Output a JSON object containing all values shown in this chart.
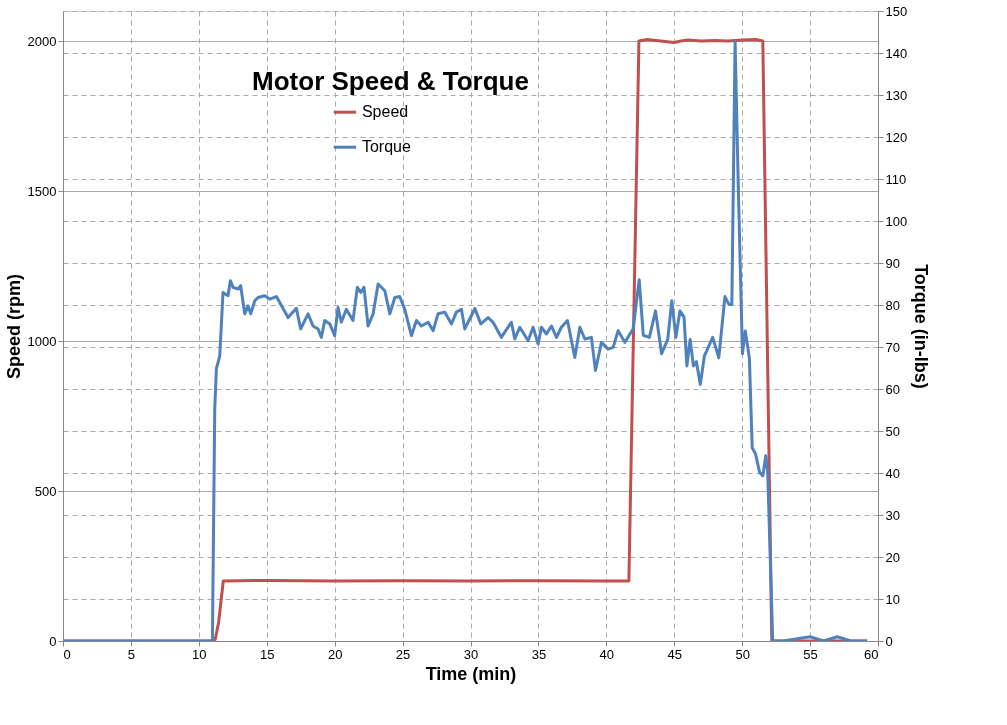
{
  "chart_data": {
    "type": "line",
    "title": "Motor Speed & Torque",
    "xlabel": "Time (min)",
    "ylabel": "Speed (rpm)",
    "y2label": "Torque (in-lbs)",
    "xlim": [
      0,
      60
    ],
    "xticks": [
      0,
      5,
      10,
      15,
      20,
      25,
      30,
      35,
      40,
      45,
      50,
      55,
      60
    ],
    "ylim": [
      0,
      2100
    ],
    "yticks": [
      0,
      500,
      1000,
      1500,
      2000
    ],
    "y2lim": [
      0,
      150
    ],
    "y2ticks": [
      0,
      10,
      20,
      30,
      40,
      50,
      60,
      70,
      80,
      90,
      100,
      110,
      120,
      130,
      140,
      150
    ],
    "grid": true,
    "legend": "top",
    "line_style": "solid",
    "marker": "none",
    "series": [
      {
        "name": "Speed",
        "color": "#c0504d",
        "axis": "y",
        "x": [
          0,
          11.1,
          11.2,
          11.45,
          11.8,
          15,
          20,
          25,
          30,
          35,
          40,
          41.66,
          42.4,
          43,
          44,
          45,
          45.5,
          46,
          47,
          48,
          49,
          50,
          51,
          51.52,
          52.18,
          55,
          59.2
        ],
        "values": [
          0,
          0,
          5,
          60,
          200,
          202,
          200,
          201,
          200,
          201,
          200,
          200,
          2000,
          2005,
          2000,
          1995,
          2000,
          2003,
          2000,
          2002,
          2000,
          2003,
          2005,
          2000,
          0,
          0,
          0
        ]
      },
      {
        "name": "Torque",
        "color": "#4f81bd",
        "axis": "y2",
        "x": [
          0,
          11.0,
          11.17,
          11.29,
          11.54,
          11.78,
          12.15,
          12.32,
          12.52,
          12.89,
          13.08,
          13.38,
          13.62,
          13.82,
          14.12,
          14.36,
          14.85,
          15.22,
          15.71,
          16.57,
          17.18,
          17.5,
          18.04,
          18.41,
          18.78,
          19.02,
          19.27,
          19.64,
          20.0,
          20.25,
          20.49,
          20.86,
          21.35,
          21.67,
          21.92,
          22.16,
          22.46,
          22.83,
          23.2,
          23.69,
          24.06,
          24.43,
          24.79,
          25.16,
          25.65,
          26.02,
          26.38,
          26.88,
          27.25,
          27.61,
          28.11,
          28.6,
          28.96,
          29.33,
          29.58,
          30.07,
          30.32,
          30.76,
          31.3,
          31.66,
          32.27,
          33.01,
          33.26,
          33.63,
          34.24,
          34.61,
          34.98,
          35.22,
          35.59,
          35.96,
          36.33,
          36.69,
          37.14,
          37.68,
          38.05,
          38.42,
          38.9,
          39.2,
          39.64,
          40.13,
          40.5,
          40.87,
          41.36,
          41.97,
          42.42,
          42.72,
          43.17,
          43.62,
          44.07,
          44.52,
          44.82,
          45.12,
          45.42,
          45.72,
          45.93,
          46.17,
          46.41,
          46.63,
          46.92,
          47.22,
          47.83,
          48.28,
          48.73,
          49.03,
          49.24,
          49.48,
          49.72,
          50.02,
          50.23,
          50.53,
          50.74,
          50.98,
          51.28,
          51.52,
          51.74,
          51.88,
          52.25,
          53,
          55,
          56,
          57,
          58,
          59.2
        ],
        "values": [
          0,
          0,
          55,
          64.8,
          67.9,
          83,
          82.2,
          85.8,
          84.2,
          83.8,
          84.6,
          77.9,
          79.8,
          77.9,
          81,
          81.8,
          82.2,
          81.4,
          82,
          77,
          79.2,
          74.3,
          77.9,
          75,
          74.3,
          72.3,
          76.3,
          75.5,
          72.7,
          79.4,
          75.9,
          79,
          76.3,
          84.2,
          83,
          84.2,
          75,
          77.9,
          85,
          83.4,
          77.9,
          81.8,
          82,
          79,
          72.7,
          76.3,
          75,
          75.9,
          73.9,
          77.9,
          78.3,
          75.5,
          78.3,
          79,
          74.3,
          77.5,
          79.2,
          75.5,
          77,
          75.9,
          72.3,
          75.9,
          71.9,
          74.7,
          71.5,
          74.7,
          70.7,
          74.7,
          73.1,
          75,
          72.3,
          74.7,
          76.3,
          67.5,
          74.7,
          71.9,
          72.3,
          64.4,
          71.1,
          69.5,
          69.9,
          73.9,
          71.1,
          74.3,
          86,
          72.8,
          72.3,
          78.6,
          68.4,
          71.8,
          81,
          72.3,
          78.6,
          77.1,
          65.5,
          71.8,
          65.5,
          66.5,
          61.1,
          67.9,
          72.3,
          67.4,
          82,
          80.1,
          80.1,
          142.8,
          107.3,
          68.4,
          73.8,
          67.4,
          46,
          44.6,
          40.2,
          39.3,
          44.1,
          40.2,
          0,
          0,
          1,
          0,
          1,
          0,
          0
        ]
      }
    ]
  }
}
